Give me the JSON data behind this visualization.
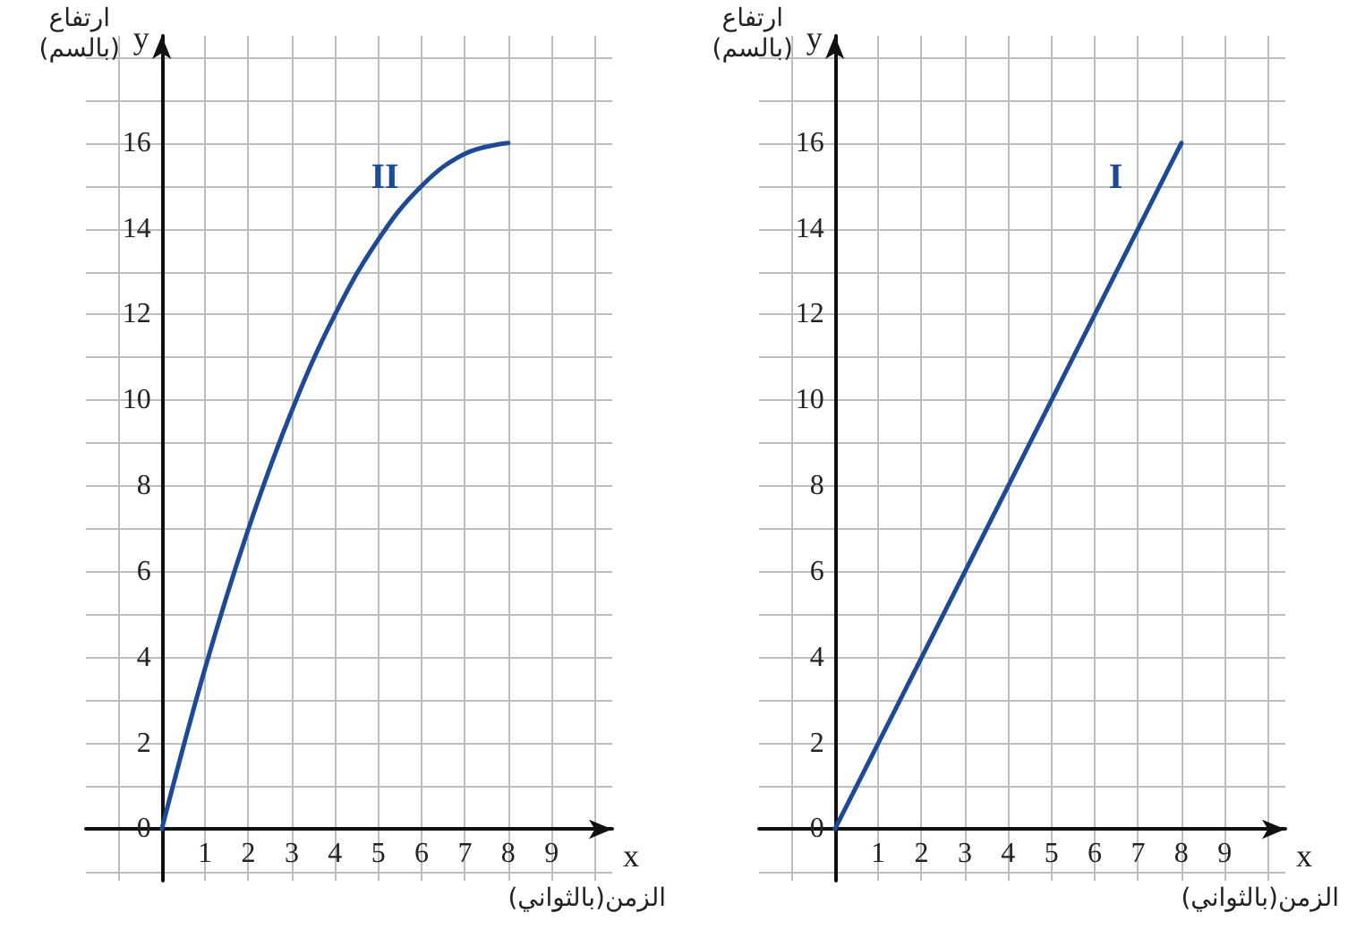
{
  "chart_data": [
    {
      "type": "line",
      "xlabel": "الزمن(بالثواني)",
      "ylabel": "ارتفاع (بالسم)",
      "annotations": [
        "x",
        "y"
      ],
      "x": [
        0,
        1,
        2,
        3,
        4,
        5,
        6,
        7,
        8
      ],
      "series": [
        {
          "name": "II",
          "color": "#1b4a9c",
          "values": [
            0,
            3.75,
            7,
            9.75,
            12,
            13.75,
            15,
            15.75,
            16
          ]
        }
      ],
      "xlim": [
        -1.75,
        10.4
      ],
      "ylim": [
        -1.2,
        18.5
      ],
      "xticks": [
        {
          "value": -1,
          "label": null
        },
        {
          "value": 0,
          "label": null
        },
        1,
        2,
        3,
        4,
        5,
        6,
        7,
        8,
        9,
        {
          "value": 10,
          "label": null
        }
      ],
      "yticks": [
        {
          "value": -1,
          "label": null
        },
        0,
        {
          "value": 1,
          "label": null
        },
        2,
        {
          "value": 3,
          "label": null
        },
        4,
        {
          "value": 5,
          "label": null
        },
        6,
        {
          "value": 7,
          "label": null
        },
        8,
        {
          "value": 9,
          "label": null
        },
        10,
        {
          "value": 11,
          "label": null
        },
        12,
        {
          "value": 13,
          "label": null
        },
        14,
        {
          "value": 15,
          "label": null
        },
        16,
        {
          "value": 17,
          "label": null
        },
        {
          "value": 18,
          "label": null
        }
      ],
      "grid": true
    },
    {
      "type": "line",
      "xlabel": "الزمن(بالثواني)",
      "ylabel": "ارتفاع (بالسم)",
      "annotations": [
        "x",
        "y"
      ],
      "x": [
        0,
        8
      ],
      "series": [
        {
          "name": "I",
          "color": "#1b4a9c",
          "values": [
            0,
            16
          ]
        }
      ],
      "xlim": [
        -1.75,
        10.4
      ],
      "ylim": [
        -1.2,
        18.5
      ],
      "xticks": [
        {
          "value": -1,
          "label": null
        },
        {
          "value": 0,
          "label": null
        },
        1,
        2,
        3,
        4,
        5,
        6,
        7,
        8,
        9,
        {
          "value": 10,
          "label": null
        }
      ],
      "yticks": [
        {
          "value": -1,
          "label": null
        },
        0,
        {
          "value": 1,
          "label": null
        },
        2,
        {
          "value": 3,
          "label": null
        },
        4,
        {
          "value": 5,
          "label": null
        },
        6,
        {
          "value": 7,
          "label": null
        },
        8,
        {
          "value": 9,
          "label": null
        },
        10,
        {
          "value": 11,
          "label": null
        },
        12,
        {
          "value": 13,
          "label": null
        },
        14,
        {
          "value": 15,
          "label": null
        },
        16,
        {
          "value": 17,
          "label": null
        },
        {
          "value": 18,
          "label": null
        }
      ],
      "grid": true
    }
  ]
}
